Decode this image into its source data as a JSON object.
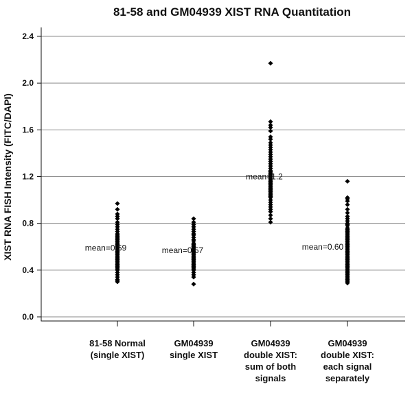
{
  "chart_data": {
    "type": "scatter",
    "title": "81-58 and GM04939 XIST RNA Quantitation",
    "ylabel": "XIST RNA FISH Intensity (FITC/DAPI)",
    "xlabel": "",
    "ylim": [
      0,
      2.4
    ],
    "yticks": [
      "0.0",
      "0.4",
      "0.8",
      "1.2",
      "1.6",
      "2.0",
      "2.4"
    ],
    "grid": true,
    "marker": "diamond",
    "categories": [
      [
        "81-58 Normal",
        "(single XIST)"
      ],
      [
        "GM04939",
        "single XIST"
      ],
      [
        "GM04939",
        "double XIST:",
        "sum of both",
        "signals"
      ],
      [
        "GM04939",
        "double XIST:",
        "each signal",
        "separately"
      ]
    ],
    "series": [
      {
        "mean_label": "mean=0.59",
        "values": [
          0.97,
          0.92,
          0.88,
          0.86,
          0.84,
          0.81,
          0.79,
          0.77,
          0.75,
          0.73,
          0.71,
          0.7,
          0.69,
          0.68,
          0.67,
          0.66,
          0.65,
          0.64,
          0.63,
          0.62,
          0.61,
          0.6,
          0.59,
          0.58,
          0.57,
          0.56,
          0.55,
          0.54,
          0.53,
          0.52,
          0.51,
          0.5,
          0.49,
          0.48,
          0.47,
          0.46,
          0.45,
          0.44,
          0.43,
          0.42,
          0.41,
          0.4,
          0.38,
          0.36,
          0.34,
          0.32,
          0.31,
          0.3
        ]
      },
      {
        "mean_label": "mean=0.57",
        "values": [
          0.84,
          0.81,
          0.79,
          0.77,
          0.75,
          0.73,
          0.71,
          0.7,
          0.68,
          0.66,
          0.65,
          0.63,
          0.62,
          0.61,
          0.6,
          0.59,
          0.58,
          0.57,
          0.56,
          0.55,
          0.54,
          0.53,
          0.52,
          0.51,
          0.5,
          0.49,
          0.48,
          0.47,
          0.46,
          0.45,
          0.44,
          0.43,
          0.42,
          0.41,
          0.4,
          0.38,
          0.36,
          0.34,
          0.28
        ]
      },
      {
        "mean_label": "mean=1.2",
        "values": [
          2.17,
          1.67,
          1.64,
          1.62,
          1.59,
          1.54,
          1.52,
          1.49,
          1.47,
          1.45,
          1.43,
          1.41,
          1.39,
          1.37,
          1.35,
          1.33,
          1.31,
          1.29,
          1.27,
          1.25,
          1.24,
          1.23,
          1.22,
          1.21,
          1.2,
          1.19,
          1.18,
          1.17,
          1.16,
          1.15,
          1.14,
          1.13,
          1.12,
          1.11,
          1.1,
          1.09,
          1.08,
          1.07,
          1.06,
          1.05,
          1.04,
          1.03,
          1.02,
          1.0,
          0.98,
          0.96,
          0.94,
          0.92,
          0.9,
          0.87,
          0.84,
          0.81
        ]
      },
      {
        "mean_label": "mean=0.60",
        "values": [
          1.16,
          1.02,
          1.01,
          0.99,
          0.96,
          0.92,
          0.89,
          0.86,
          0.84,
          0.82,
          0.8,
          0.79,
          0.78,
          0.76,
          0.75,
          0.74,
          0.73,
          0.72,
          0.71,
          0.7,
          0.69,
          0.68,
          0.67,
          0.66,
          0.65,
          0.64,
          0.63,
          0.62,
          0.61,
          0.6,
          0.59,
          0.58,
          0.57,
          0.56,
          0.55,
          0.54,
          0.53,
          0.52,
          0.51,
          0.5,
          0.49,
          0.48,
          0.47,
          0.46,
          0.45,
          0.44,
          0.43,
          0.42,
          0.41,
          0.4,
          0.39,
          0.38,
          0.37,
          0.36,
          0.35,
          0.34,
          0.33,
          0.32,
          0.31,
          0.3,
          0.29
        ]
      }
    ]
  }
}
